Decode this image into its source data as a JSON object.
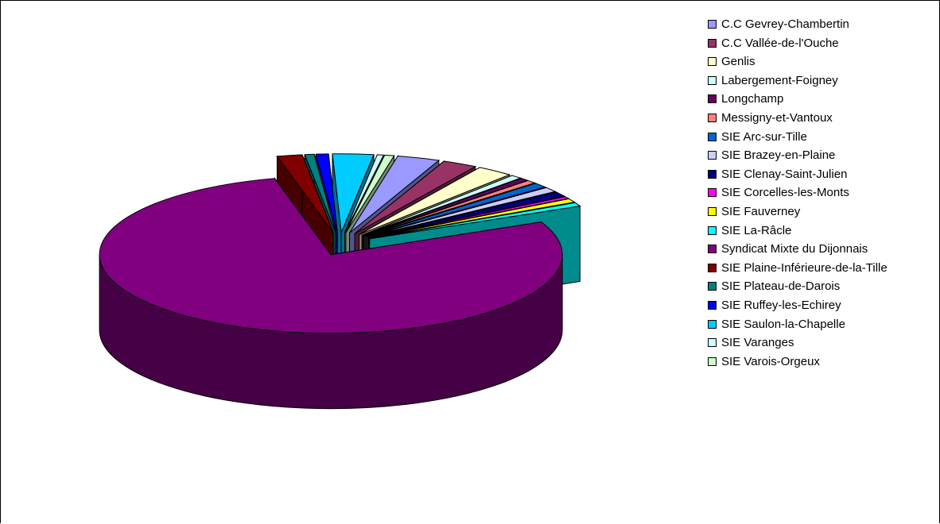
{
  "chart_data": {
    "type": "pie",
    "style": "3d-exploded",
    "legend_position": "right",
    "series": [
      {
        "name": "C.C Gevrey-Chambertin",
        "value": 2.7,
        "color": "#9999FF"
      },
      {
        "name": "C.C Vallée-de-l'Ouche",
        "value": 2.2,
        "color": "#993366"
      },
      {
        "name": "Genlis",
        "value": 2.3,
        "color": "#FFFFCC"
      },
      {
        "name": "Labergement-Foigney",
        "value": 0.7,
        "color": "#CCFFFF"
      },
      {
        "name": "Longchamp",
        "value": 0.5,
        "color": "#660066"
      },
      {
        "name": "Messigny-et-Vantoux",
        "value": 0.6,
        "color": "#FF8080"
      },
      {
        "name": "SIE Arc-sur-Tille",
        "value": 0.9,
        "color": "#0066CC"
      },
      {
        "name": "SIE Brazey-en-Plaine",
        "value": 0.9,
        "color": "#CCCCFF"
      },
      {
        "name": "SIE Clenay-Saint-Julien",
        "value": 0.9,
        "color": "#000080"
      },
      {
        "name": "SIE Corcelles-les-Monts",
        "value": 0.4,
        "color": "#FF00FF"
      },
      {
        "name": "SIE Fauverney",
        "value": 0.7,
        "color": "#FFFF00"
      },
      {
        "name": "SIE La-Râcle",
        "value": 0.7,
        "color": "#00FFFF"
      },
      {
        "name": "Syndicat Mixte du Dijonnais",
        "value": 71.0,
        "color": "#800080"
      },
      {
        "name": "SIE Plaine-Inférieure-de-la-Tille",
        "value": 1.6,
        "color": "#800000"
      },
      {
        "name": "SIE Plateau-de-Darois",
        "value": 0.6,
        "color": "#008080"
      },
      {
        "name": "SIE Ruffey-les-Echirey",
        "value": 0.8,
        "color": "#0000FF"
      },
      {
        "name": "SIE Saulon-la-Chapelle",
        "value": 2.6,
        "color": "#00CCFF"
      },
      {
        "name": "SIE Varanges",
        "value": 0.4,
        "color": "#CCFFFF"
      },
      {
        "name": "SIE Varois-Orgeux",
        "value": 0.6,
        "color": "#CCFFCC"
      }
    ]
  }
}
